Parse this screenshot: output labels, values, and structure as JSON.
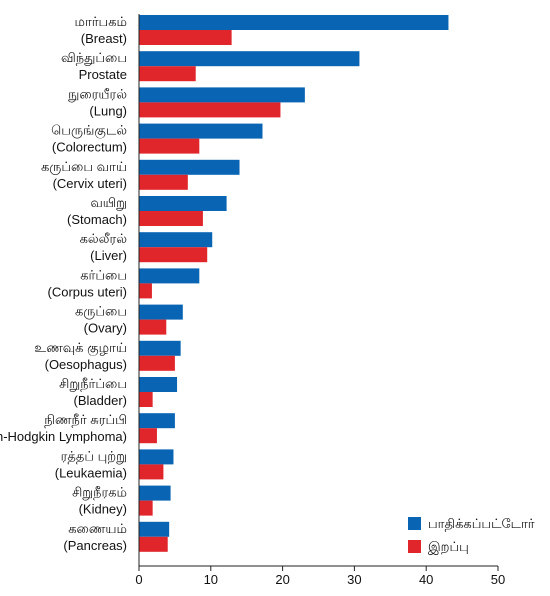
{
  "chart_data": {
    "type": "bar",
    "orientation": "horizontal",
    "categories": [
      [
        "மார்பகம்",
        "(Breast)"
      ],
      [
        "விந்துப்பை",
        "Prostate"
      ],
      [
        "நுரையீரல்",
        "(Lung)"
      ],
      [
        "பெருங்குடல்",
        "(Colorectum)"
      ],
      [
        "கருப்பை வாய்",
        "(Cervix uteri)"
      ],
      [
        "வயிறு",
        "(Stomach)"
      ],
      [
        "கல்லீரல்",
        "(Liver)"
      ],
      [
        "கர்ப்பை",
        "(Corpus uteri)"
      ],
      [
        "கருப்பை",
        "(Ovary)"
      ],
      [
        "உணவுக் குழாய்",
        "(Oesophagus)"
      ],
      [
        "சிறுநீர்ப்பை",
        "(Bladder)"
      ],
      [
        "நிணநீர் சுரப்பி",
        "(Non-Hodgkin Lymphoma)"
      ],
      [
        "ரத்தப் புற்று",
        "(Leukaemia)"
      ],
      [
        "சிறுநீரகம்",
        "(Kidney)"
      ],
      [
        "கணையம்",
        "(Pancreas)"
      ]
    ],
    "series": [
      {
        "name": "பாதிக்கப்பட்டோர்",
        "color": "#0a64b4",
        "values": [
          43.1,
          30.7,
          23.1,
          17.2,
          14.0,
          12.2,
          10.2,
          8.4,
          6.1,
          5.8,
          5.3,
          5.0,
          4.8,
          4.4,
          4.2
        ]
      },
      {
        "name": "இறப்பு",
        "color": "#e0252b",
        "values": [
          12.9,
          7.9,
          19.7,
          8.4,
          6.8,
          8.9,
          9.5,
          1.8,
          3.8,
          5.0,
          1.9,
          2.5,
          3.4,
          1.9,
          4.0
        ]
      }
    ],
    "x_ticks": [
      0,
      10,
      20,
      30,
      40,
      50
    ],
    "xlim": [
      0,
      50
    ],
    "title": "",
    "xlabel": "",
    "ylabel": "",
    "grid": false,
    "legend_position": "bottom-right"
  }
}
